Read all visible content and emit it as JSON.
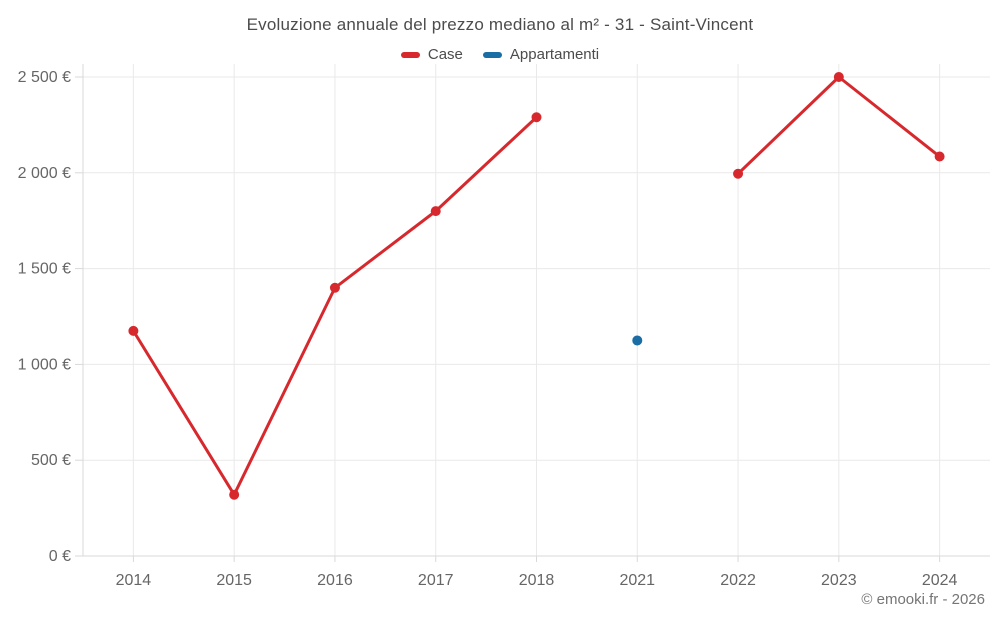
{
  "chart_data": {
    "type": "line",
    "title": "Evoluzione annuale del prezzo mediano al m² - 31 - Saint-Vincent",
    "categories": [
      "2014",
      "2015",
      "2016",
      "2017",
      "2018",
      "2021",
      "2022",
      "2023",
      "2024"
    ],
    "series": [
      {
        "name": "Case",
        "color": "#d7292d",
        "values": [
          1175,
          320,
          1400,
          1800,
          2290,
          null,
          1995,
          2500,
          2085
        ]
      },
      {
        "name": "Appartamenti",
        "color": "#1b6ea5",
        "values": [
          null,
          null,
          null,
          null,
          null,
          1125,
          null,
          null,
          null
        ]
      }
    ],
    "xlabel": "",
    "ylabel": "",
    "ylim": [
      0,
      2500
    ],
    "yticks": {
      "values": [
        0,
        500,
        1000,
        1500,
        2000,
        2500
      ],
      "labels": [
        "0 €",
        "500 €",
        "1 000 €",
        "1 500 €",
        "2 000 €",
        "2 500 €"
      ]
    },
    "grid": true,
    "legend_position": "top"
  },
  "watermark": "© emooki.fr - 2026",
  "colors": {
    "background": "#ffffff",
    "grid": "#e9e9e9",
    "axis": "#d9d9d9",
    "tick_label": "#666666",
    "title_text": "#4c4c4c",
    "watermark": "#757575",
    "case_red": "#d7292d",
    "appartamenti_blue": "#1b6ea5"
  }
}
